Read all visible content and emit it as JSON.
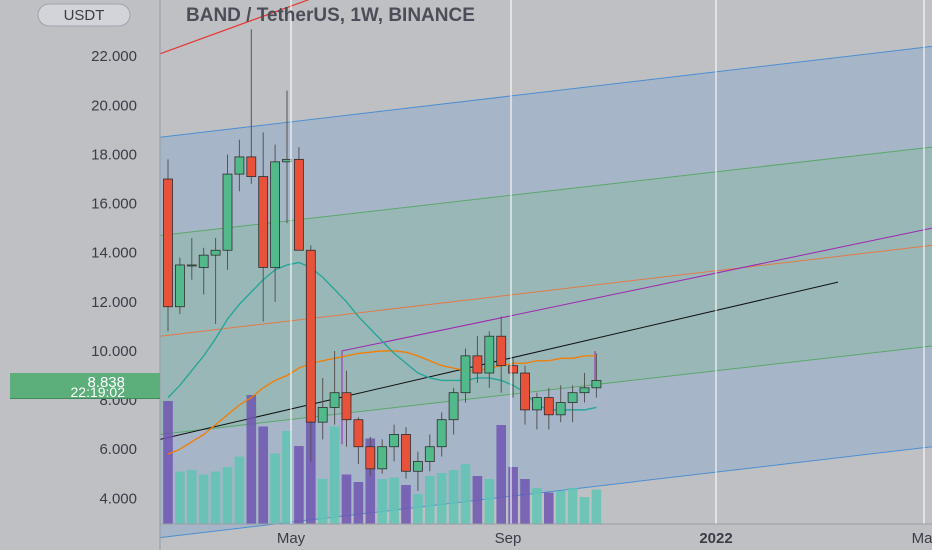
{
  "chart_data": {
    "type": "candlestick",
    "title": "BAND / TetherUS, 1W, BINANCE",
    "currency_button": "USDT",
    "ylim": [
      3.0,
      24.0
    ],
    "y_ticks": [
      "22.000",
      "20.000",
      "18.000",
      "16.000",
      "14.000",
      "12.000",
      "10.000",
      "8.000",
      "6.000",
      "4.000"
    ],
    "x_ticks": [
      "May",
      "Sep",
      "2022",
      "Ma"
    ],
    "last_price": "8.838",
    "countdown": "22:19:02",
    "colors": {
      "up": "#52b98a",
      "down": "#e8523a",
      "channel_outer": "#4d8fd1",
      "channel_inner": "#7fbf8f",
      "ema": "#26a69a",
      "ma": "#f57c00",
      "volume_up": "#5fc4b4",
      "volume_down": "#6f56b0",
      "price_label": "#5cae7a"
    },
    "candles": [
      {
        "o": 17.0,
        "h": 17.8,
        "l": 10.8,
        "c": 11.8
      },
      {
        "o": 11.8,
        "h": 13.8,
        "l": 11.5,
        "c": 13.5
      },
      {
        "o": 13.5,
        "h": 14.6,
        "l": 12.9,
        "c": 13.5
      },
      {
        "o": 13.4,
        "h": 14.2,
        "l": 12.3,
        "c": 13.9
      },
      {
        "o": 13.9,
        "h": 14.6,
        "l": 11.1,
        "c": 14.1
      },
      {
        "o": 14.1,
        "h": 18.0,
        "l": 13.3,
        "c": 17.2
      },
      {
        "o": 17.2,
        "h": 18.6,
        "l": 16.5,
        "c": 17.9
      },
      {
        "o": 17.9,
        "h": 23.1,
        "l": 16.8,
        "c": 17.1
      },
      {
        "o": 17.1,
        "h": 18.9,
        "l": 11.2,
        "c": 13.4
      },
      {
        "o": 13.4,
        "h": 18.4,
        "l": 12.0,
        "c": 17.7
      },
      {
        "o": 17.7,
        "h": 20.6,
        "l": 15.2,
        "c": 17.8
      },
      {
        "o": 17.8,
        "h": 18.3,
        "l": 14.2,
        "c": 14.1
      },
      {
        "o": 14.1,
        "h": 14.3,
        "l": 5.5,
        "c": 7.1
      },
      {
        "o": 7.1,
        "h": 8.9,
        "l": 6.4,
        "c": 7.7
      },
      {
        "o": 7.7,
        "h": 10.0,
        "l": 7.0,
        "c": 8.3
      },
      {
        "o": 8.3,
        "h": 9.2,
        "l": 6.1,
        "c": 7.2
      },
      {
        "o": 7.2,
        "h": 7.3,
        "l": 5.4,
        "c": 6.1
      },
      {
        "o": 6.1,
        "h": 6.5,
        "l": 4.9,
        "c": 5.2
      },
      {
        "o": 5.2,
        "h": 6.4,
        "l": 5.0,
        "c": 6.1
      },
      {
        "o": 6.1,
        "h": 7.0,
        "l": 5.5,
        "c": 6.6
      },
      {
        "o": 6.6,
        "h": 6.9,
        "l": 4.8,
        "c": 5.1
      },
      {
        "o": 5.1,
        "h": 5.9,
        "l": 4.3,
        "c": 5.5
      },
      {
        "o": 5.5,
        "h": 6.6,
        "l": 5.1,
        "c": 6.1
      },
      {
        "o": 6.1,
        "h": 7.5,
        "l": 5.7,
        "c": 7.2
      },
      {
        "o": 7.2,
        "h": 8.5,
        "l": 6.6,
        "c": 8.3
      },
      {
        "o": 8.3,
        "h": 10.1,
        "l": 7.9,
        "c": 9.8
      },
      {
        "o": 9.8,
        "h": 10.6,
        "l": 8.7,
        "c": 9.1
      },
      {
        "o": 9.1,
        "h": 10.8,
        "l": 8.5,
        "c": 10.6
      },
      {
        "o": 10.6,
        "h": 11.4,
        "l": 8.3,
        "c": 9.4
      },
      {
        "o": 9.4,
        "h": 9.7,
        "l": 8.1,
        "c": 9.1
      },
      {
        "o": 9.1,
        "h": 9.4,
        "l": 7.0,
        "c": 7.6
      },
      {
        "o": 7.6,
        "h": 8.3,
        "l": 6.8,
        "c": 8.1
      },
      {
        "o": 8.1,
        "h": 8.5,
        "l": 6.8,
        "c": 7.4
      },
      {
        "o": 7.4,
        "h": 8.6,
        "l": 7.1,
        "c": 7.9
      },
      {
        "o": 7.9,
        "h": 8.6,
        "l": 7.1,
        "c": 8.3
      },
      {
        "o": 8.3,
        "h": 9.1,
        "l": 7.9,
        "c": 8.5
      },
      {
        "o": 8.5,
        "h": 9.9,
        "l": 8.1,
        "c": 8.8
      }
    ],
    "volume": [
      0.82,
      0.35,
      0.36,
      0.33,
      0.35,
      0.38,
      0.45,
      0.86,
      0.65,
      0.47,
      0.62,
      0.52,
      0.8,
      0.3,
      0.65,
      0.33,
      0.28,
      0.57,
      0.3,
      0.31,
      0.26,
      0.2,
      0.32,
      0.34,
      0.36,
      0.4,
      0.32,
      0.3,
      0.66,
      0.38,
      0.3,
      0.24,
      0.21,
      0.22,
      0.24,
      0.18,
      0.23
    ],
    "ema_line": [
      8.1,
      8.6,
      9.2,
      9.8,
      10.5,
      11.3,
      11.9,
      12.4,
      12.9,
      13.3,
      13.5,
      13.6,
      13.4,
      13.0,
      12.5,
      12.0,
      11.4,
      10.9,
      10.4,
      9.9,
      9.5,
      9.1,
      8.9,
      8.8,
      8.8,
      8.8,
      8.9,
      8.9,
      8.8,
      8.6,
      8.3,
      7.8,
      7.6,
      7.6,
      7.6,
      7.6,
      7.7
    ],
    "ma_line": [
      5.8,
      6.0,
      6.3,
      6.6,
      7.0,
      7.4,
      7.8,
      8.1,
      8.5,
      8.8,
      9.0,
      9.3,
      9.5,
      9.6,
      9.7,
      9.8,
      9.9,
      9.95,
      10.0,
      10.0,
      9.95,
      9.8,
      9.6,
      9.4,
      9.3,
      9.2,
      9.2,
      9.3,
      9.4,
      9.5,
      9.5,
      9.6,
      9.6,
      9.7,
      9.7,
      9.8,
      9.8
    ]
  }
}
